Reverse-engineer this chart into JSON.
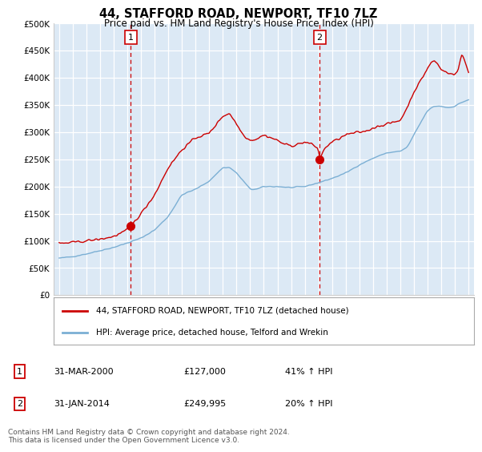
{
  "title": "44, STAFFORD ROAD, NEWPORT, TF10 7LZ",
  "subtitle": "Price paid vs. HM Land Registry's House Price Index (HPI)",
  "plot_bg_color": "#dce9f5",
  "grid_color": "white",
  "red_line_color": "#cc0000",
  "blue_line_color": "#7bafd4",
  "sale1_x": 2000.25,
  "sale1_y": 127000,
  "sale2_x": 2014.083,
  "sale2_y": 249995,
  "vline1_x": 2000.25,
  "vline2_x": 2014.083,
  "ylim": [
    0,
    500000
  ],
  "yticks": [
    0,
    50000,
    100000,
    150000,
    200000,
    250000,
    300000,
    350000,
    400000,
    450000,
    500000
  ],
  "ytick_labels": [
    "£0",
    "£50K",
    "£100K",
    "£150K",
    "£200K",
    "£250K",
    "£300K",
    "£350K",
    "£400K",
    "£450K",
    "£500K"
  ],
  "xlim_left": 1994.6,
  "xlim_right": 2025.4,
  "legend_label_red": "44, STAFFORD ROAD, NEWPORT, TF10 7LZ (detached house)",
  "legend_label_blue": "HPI: Average price, detached house, Telford and Wrekin",
  "footnote": "Contains HM Land Registry data © Crown copyright and database right 2024.\nThis data is licensed under the Open Government Licence v3.0.",
  "table_row1": [
    "1",
    "31-MAR-2000",
    "£127,000",
    "41% ↑ HPI"
  ],
  "table_row2": [
    "2",
    "31-JAN-2014",
    "£249,995",
    "20% ↑ HPI"
  ],
  "hpi_years": [
    1995.0,
    1995.08,
    1995.17,
    1995.25,
    1995.33,
    1995.42,
    1995.5,
    1995.58,
    1995.67,
    1995.75,
    1995.83,
    1995.92,
    1996.0,
    1996.08,
    1996.17,
    1996.25,
    1996.33,
    1996.42,
    1996.5,
    1996.58,
    1996.67,
    1996.75,
    1996.83,
    1996.92,
    1997.0,
    1997.08,
    1997.17,
    1997.25,
    1997.33,
    1997.42,
    1997.5,
    1997.58,
    1997.67,
    1997.75,
    1997.83,
    1997.92,
    1998.0,
    1998.08,
    1998.17,
    1998.25,
    1998.33,
    1998.42,
    1998.5,
    1998.58,
    1998.67,
    1998.75,
    1998.83,
    1998.92,
    1999.0,
    1999.08,
    1999.17,
    1999.25,
    1999.33,
    1999.42,
    1999.5,
    1999.58,
    1999.67,
    1999.75,
    1999.83,
    1999.92,
    2000.0,
    2000.08,
    2000.17,
    2000.25,
    2000.33,
    2000.42,
    2000.5,
    2000.58,
    2000.67,
    2000.75,
    2000.83,
    2000.92,
    2001.0,
    2001.08,
    2001.17,
    2001.25,
    2001.33,
    2001.42,
    2001.5,
    2001.58,
    2001.67,
    2001.75,
    2001.83,
    2001.92,
    2002.0,
    2002.08,
    2002.17,
    2002.25,
    2002.33,
    2002.42,
    2002.5,
    2002.58,
    2002.67,
    2002.75,
    2002.83,
    2002.92,
    2003.0,
    2003.08,
    2003.17,
    2003.25,
    2003.33,
    2003.42,
    2003.5,
    2003.58,
    2003.67,
    2003.75,
    2003.83,
    2003.92,
    2004.0,
    2004.08,
    2004.17,
    2004.25,
    2004.33,
    2004.42,
    2004.5,
    2004.58,
    2004.67,
    2004.75,
    2004.83,
    2004.92,
    2005.0,
    2005.08,
    2005.17,
    2005.25,
    2005.33,
    2005.42,
    2005.5,
    2005.58,
    2005.67,
    2005.75,
    2005.83,
    2005.92,
    2006.0,
    2006.08,
    2006.17,
    2006.25,
    2006.33,
    2006.42,
    2006.5,
    2006.58,
    2006.67,
    2006.75,
    2006.83,
    2006.92,
    2007.0,
    2007.08,
    2007.17,
    2007.25,
    2007.33,
    2007.42,
    2007.5,
    2007.58,
    2007.67,
    2007.75,
    2007.83,
    2007.92,
    2008.0,
    2008.08,
    2008.17,
    2008.25,
    2008.33,
    2008.42,
    2008.5,
    2008.58,
    2008.67,
    2008.75,
    2008.83,
    2008.92,
    2009.0,
    2009.08,
    2009.17,
    2009.25,
    2009.33,
    2009.42,
    2009.5,
    2009.58,
    2009.67,
    2009.75,
    2009.83,
    2009.92,
    2010.0,
    2010.08,
    2010.17,
    2010.25,
    2010.33,
    2010.42,
    2010.5,
    2010.58,
    2010.67,
    2010.75,
    2010.83,
    2010.92,
    2011.0,
    2011.08,
    2011.17,
    2011.25,
    2011.33,
    2011.42,
    2011.5,
    2011.58,
    2011.67,
    2011.75,
    2011.83,
    2011.92,
    2012.0,
    2012.08,
    2012.17,
    2012.25,
    2012.33,
    2012.42,
    2012.5,
    2012.58,
    2012.67,
    2012.75,
    2012.83,
    2012.92,
    2013.0,
    2013.08,
    2013.17,
    2013.25,
    2013.33,
    2013.42,
    2013.5,
    2013.58,
    2013.67,
    2013.75,
    2013.83,
    2013.92,
    2014.0,
    2014.08,
    2014.17,
    2014.25,
    2014.33,
    2014.42,
    2014.5,
    2014.58,
    2014.67,
    2014.75,
    2014.83,
    2014.92,
    2015.0,
    2015.08,
    2015.17,
    2015.25,
    2015.33,
    2015.42,
    2015.5,
    2015.58,
    2015.67,
    2015.75,
    2015.83,
    2015.92,
    2016.0,
    2016.08,
    2016.17,
    2016.25,
    2016.33,
    2016.42,
    2016.5,
    2016.58,
    2016.67,
    2016.75,
    2016.83,
    2016.92,
    2017.0,
    2017.08,
    2017.17,
    2017.25,
    2017.33,
    2017.42,
    2017.5,
    2017.58,
    2017.67,
    2017.75,
    2017.83,
    2017.92,
    2018.0,
    2018.08,
    2018.17,
    2018.25,
    2018.33,
    2018.42,
    2018.5,
    2018.58,
    2018.67,
    2018.75,
    2018.83,
    2018.92,
    2019.0,
    2019.08,
    2019.17,
    2019.25,
    2019.33,
    2019.42,
    2019.5,
    2019.58,
    2019.67,
    2019.75,
    2019.83,
    2019.92,
    2020.0,
    2020.08,
    2020.17,
    2020.25,
    2020.33,
    2020.42,
    2020.5,
    2020.58,
    2020.67,
    2020.75,
    2020.83,
    2020.92,
    2021.0,
    2021.08,
    2021.17,
    2021.25,
    2021.33,
    2021.42,
    2021.5,
    2021.58,
    2021.67,
    2021.75,
    2021.83,
    2021.92,
    2022.0,
    2022.08,
    2022.17,
    2022.25,
    2022.33,
    2022.42,
    2022.5,
    2022.58,
    2022.67,
    2022.75,
    2022.83,
    2022.92,
    2023.0,
    2023.08,
    2023.17,
    2023.25,
    2023.33,
    2023.42,
    2023.5,
    2023.58,
    2023.67,
    2023.75,
    2023.83,
    2023.92,
    2024.0,
    2024.08,
    2024.17,
    2024.25,
    2024.33,
    2024.42,
    2024.5,
    2024.58,
    2024.67,
    2024.75,
    2024.83,
    2024.92,
    2025.0
  ]
}
